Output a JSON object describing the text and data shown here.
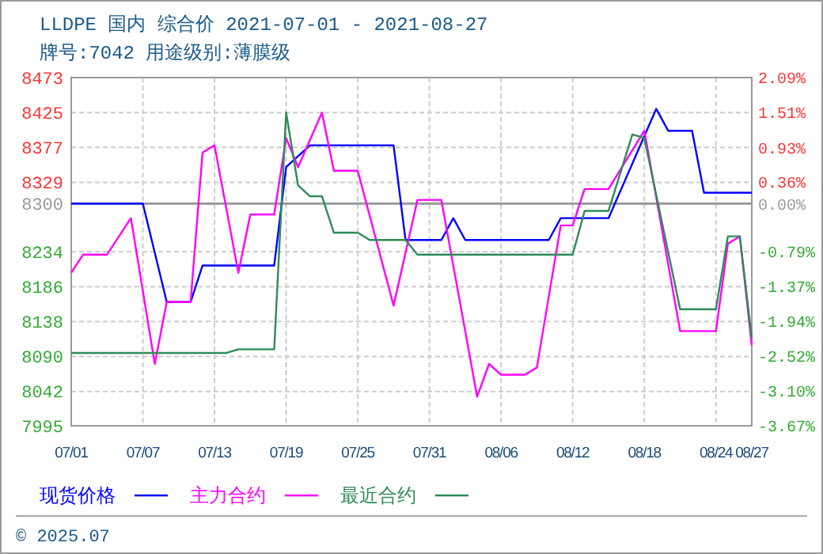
{
  "chart_data": {
    "type": "line",
    "title": "LLDPE 国内 综合价 2021-07-01 - 2021-08-27",
    "subtitle": "牌号:7042 用途级别:薄膜级",
    "xlim": [
      "2021-07-01",
      "2021-08-27"
    ],
    "xticks": [
      {
        "value": "2021-07-01",
        "label": "07/01"
      },
      {
        "value": "2021-07-07",
        "label": "07/07"
      },
      {
        "value": "2021-07-13",
        "label": "07/13"
      },
      {
        "value": "2021-07-19",
        "label": "07/19"
      },
      {
        "value": "2021-07-25",
        "label": "07/25"
      },
      {
        "value": "2021-07-31",
        "label": "07/31"
      },
      {
        "value": "2021-08-06",
        "label": "08/06"
      },
      {
        "value": "2021-08-12",
        "label": "08/12"
      },
      {
        "value": "2021-08-18",
        "label": "08/18"
      },
      {
        "value": "2021-08-24",
        "label": "08/24"
      },
      {
        "value": "2021-08-27",
        "label": "08/27"
      }
    ],
    "ylim": [
      7995,
      8473
    ],
    "yticks": [
      7995,
      8042,
      8090,
      8138,
      8186,
      8234,
      8300,
      8329,
      8377,
      8425,
      8473
    ],
    "y2lim": [
      -3.67,
      2.09
    ],
    "y2ticks": [
      {
        "value": -3.67,
        "label": "-3.67%"
      },
      {
        "value": -3.1,
        "label": "-3.10%"
      },
      {
        "value": -2.52,
        "label": "-2.52%"
      },
      {
        "value": -1.94,
        "label": "-1.94%"
      },
      {
        "value": -1.37,
        "label": "-1.37%"
      },
      {
        "value": -0.79,
        "label": "-0.79%"
      },
      {
        "value": 0,
        "label": "0.00%"
      },
      {
        "value": 0.36,
        "label": "0.36%"
      },
      {
        "value": 0.93,
        "label": "0.93%"
      },
      {
        "value": 1.51,
        "label": "1.51%"
      },
      {
        "value": 2.09,
        "label": "2.09%"
      }
    ],
    "ref_lines": [
      {
        "axis": "y",
        "value": 8300,
        "color": "#999999"
      }
    ],
    "grid": true,
    "legend": "bottom",
    "marker": "none",
    "line_style": "solid",
    "series": [
      {
        "name": "现货价格",
        "color": "#0000ff",
        "x": [
          "2021-07-01",
          "2021-07-07",
          "2021-07-09",
          "2021-07-11",
          "2021-07-12",
          "2021-07-18",
          "2021-07-19",
          "2021-07-21",
          "2021-07-28",
          "2021-07-29",
          "2021-08-01",
          "2021-08-02",
          "2021-08-03",
          "2021-08-10",
          "2021-08-11",
          "2021-08-15",
          "2021-08-19",
          "2021-08-20",
          "2021-08-22",
          "2021-08-23",
          "2021-08-27"
        ],
        "values": [
          8300,
          8300,
          8165,
          8165,
          8215,
          8215,
          8350,
          8380,
          8380,
          8250,
          8250,
          8280,
          8250,
          8250,
          8280,
          8280,
          8430,
          8400,
          8400,
          8315,
          8315
        ]
      },
      {
        "name": "主力合约",
        "color": "#ff00ff",
        "x": [
          "2021-07-01",
          "2021-07-02",
          "2021-07-04",
          "2021-07-06",
          "2021-07-08",
          "2021-07-09",
          "2021-07-11",
          "2021-07-12",
          "2021-07-13",
          "2021-07-15",
          "2021-07-16",
          "2021-07-18",
          "2021-07-19",
          "2021-07-20",
          "2021-07-22",
          "2021-07-23",
          "2021-07-25",
          "2021-07-28",
          "2021-07-30",
          "2021-08-01",
          "2021-08-04",
          "2021-08-05",
          "2021-08-06",
          "2021-08-08",
          "2021-08-09",
          "2021-08-11",
          "2021-08-12",
          "2021-08-13",
          "2021-08-15",
          "2021-08-18",
          "2021-08-21",
          "2021-08-24",
          "2021-08-25",
          "2021-08-26",
          "2021-08-27"
        ],
        "values": [
          8205,
          8230,
          8230,
          8280,
          8080,
          8165,
          8165,
          8370,
          8380,
          8205,
          8285,
          8285,
          8390,
          8350,
          8425,
          8345,
          8345,
          8160,
          8305,
          8305,
          8035,
          8080,
          8065,
          8065,
          8075,
          8270,
          8270,
          8320,
          8320,
          8400,
          8125,
          8125,
          8245,
          8255,
          8105
        ]
      },
      {
        "name": "最近合约",
        "color": "#2e8b57",
        "x": [
          "2021-07-01",
          "2021-07-14",
          "2021-07-15",
          "2021-07-18",
          "2021-07-19",
          "2021-07-20",
          "2021-07-21",
          "2021-07-22",
          "2021-07-23",
          "2021-07-25",
          "2021-07-26",
          "2021-07-29",
          "2021-07-30",
          "2021-08-12",
          "2021-08-13",
          "2021-08-15",
          "2021-08-17",
          "2021-08-18",
          "2021-08-21",
          "2021-08-24",
          "2021-08-25",
          "2021-08-26",
          "2021-08-27"
        ],
        "values": [
          8095,
          8095,
          8100,
          8100,
          8425,
          8325,
          8310,
          8310,
          8260,
          8260,
          8250,
          8250,
          8230,
          8230,
          8290,
          8290,
          8395,
          8390,
          8155,
          8155,
          8255,
          8255,
          8115
        ]
      }
    ],
    "annotations": [
      "© 2025.07"
    ]
  }
}
